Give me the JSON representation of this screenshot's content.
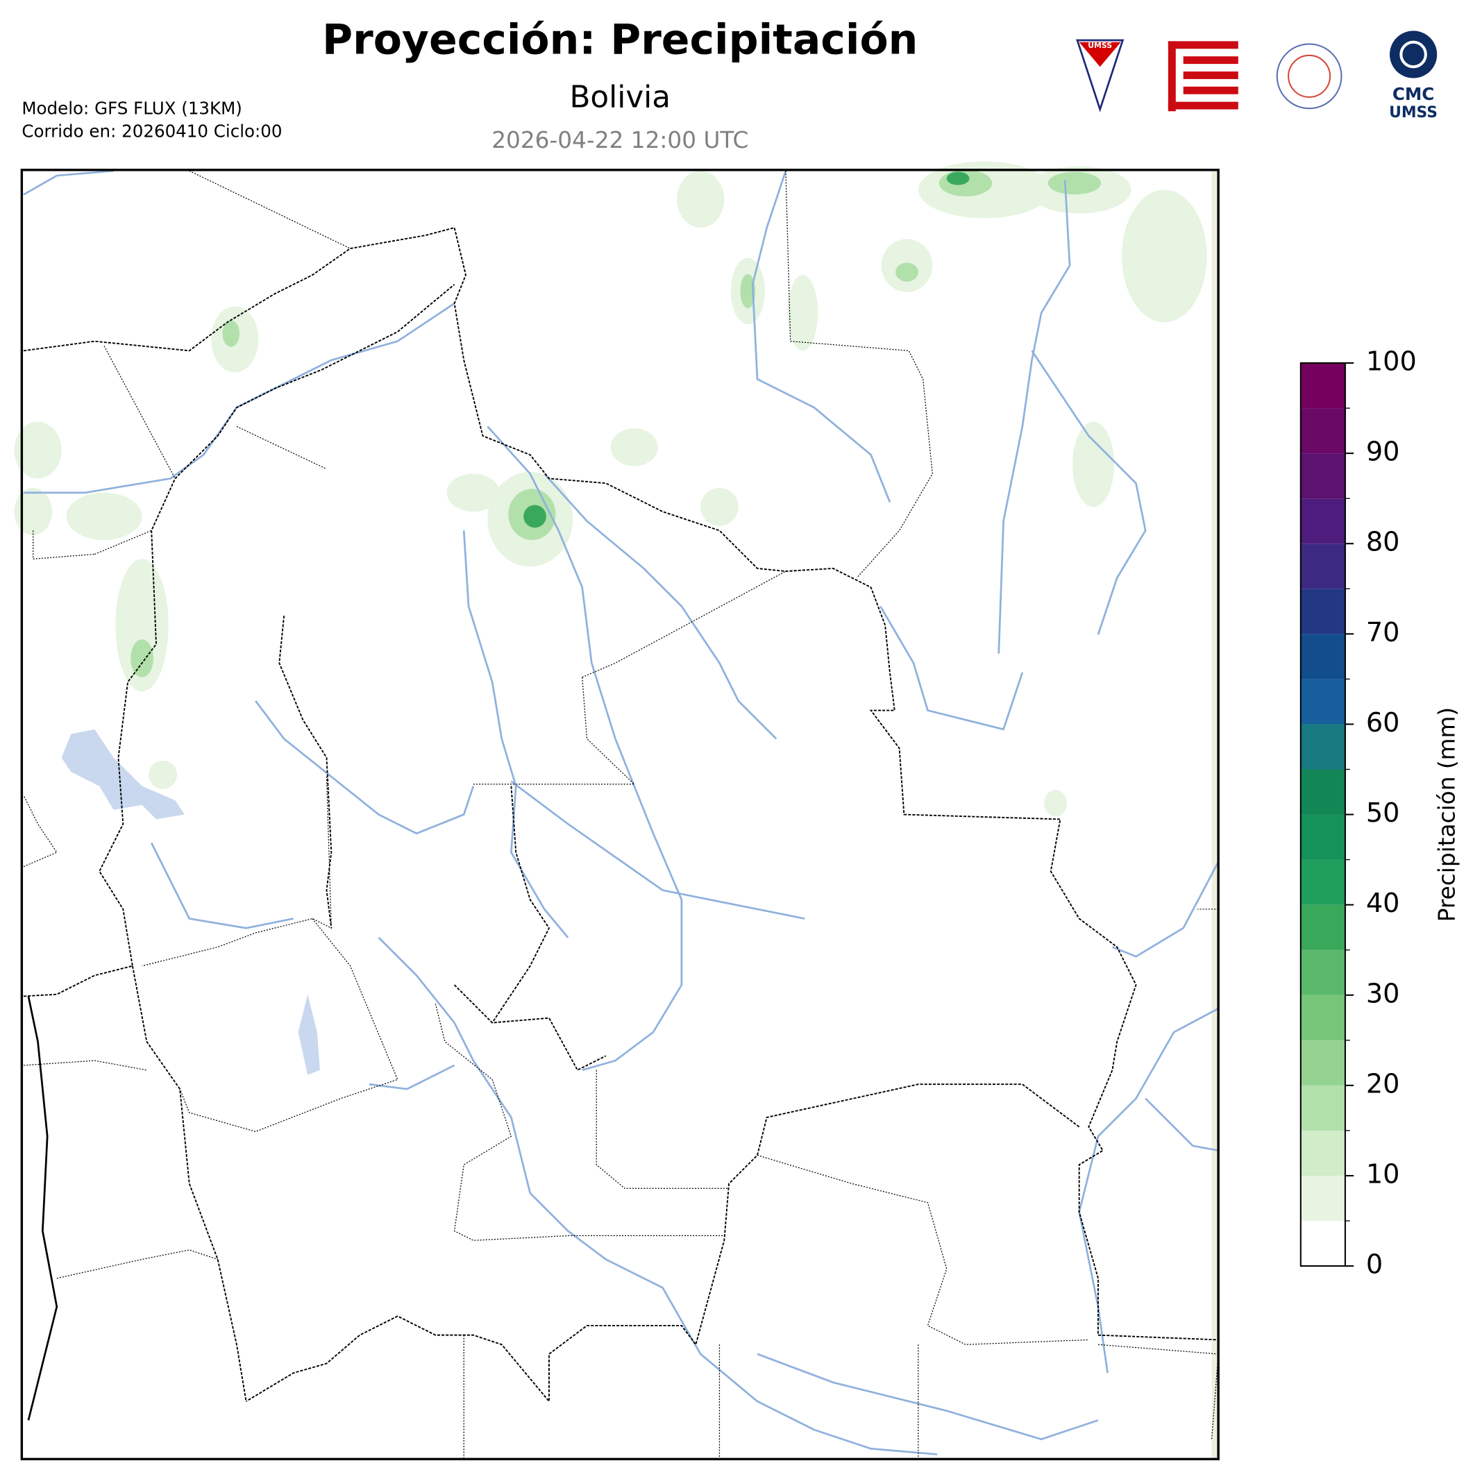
{
  "header": {
    "title": "Proyección: Precipitación",
    "subtitle": "Bolivia",
    "valid_time": "2026-04-22 12:00 UTC",
    "model": "Modelo: GFS FLUX (13KM)",
    "run": "Corrido en: 20260410 Ciclo:00"
  },
  "logos": {
    "umss_badge": "UMSS",
    "cmc_line1": "CMC",
    "cmc_line2": "UMSS"
  },
  "chart_data": {
    "type": "colorbar",
    "label": "Precipitación (mm)",
    "bins": [
      0,
      5,
      10,
      15,
      20,
      25,
      30,
      35,
      40,
      45,
      50,
      55,
      60,
      65,
      70,
      75,
      80,
      85,
      90,
      95,
      100
    ],
    "colors": [
      "#ffffff",
      "#e6f4e1",
      "#d0ecc9",
      "#b2e0ab",
      "#94d390",
      "#76c578",
      "#5bb86a",
      "#3aa85a",
      "#1f9e5c",
      "#14925a",
      "#138656",
      "#177a80",
      "#175f9c",
      "#124d8d",
      "#233884",
      "#3b2a80",
      "#4e1c7c",
      "#5d1270",
      "#6a0866",
      "#76005e"
    ],
    "ylim": [
      0,
      100
    ],
    "yticks": [
      0,
      10,
      20,
      30,
      40,
      50,
      60,
      70,
      80,
      90,
      100
    ]
  }
}
